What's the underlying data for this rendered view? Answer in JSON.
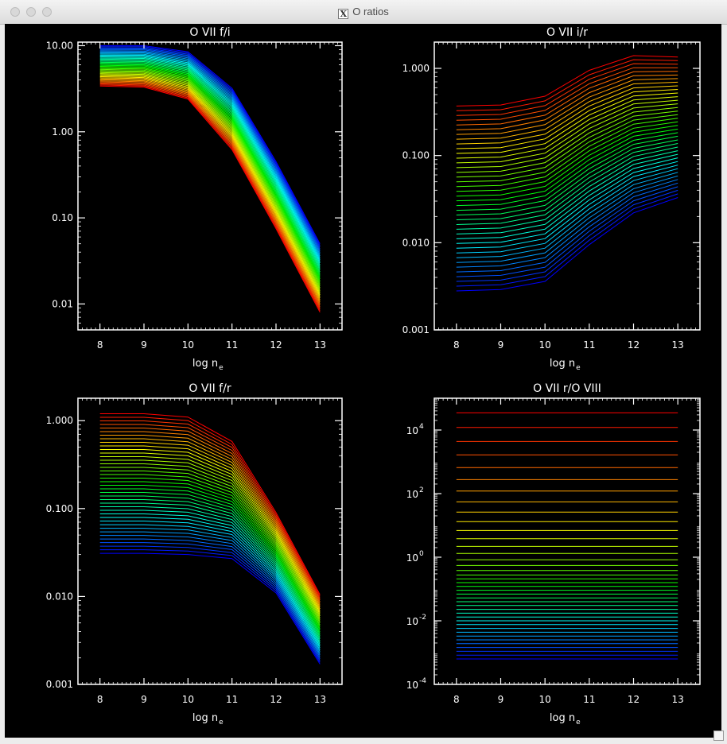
{
  "window": {
    "title": "O ratios"
  },
  "chart_data": [
    {
      "type": "line",
      "title": "O VII f/i",
      "xlabel": "log n",
      "xlabel_sub": "e",
      "x": [
        8,
        9,
        10,
        11,
        12,
        13
      ],
      "xlim": [
        7.5,
        13.5
      ],
      "yscale": "log",
      "ylim": [
        0.005,
        11
      ],
      "yticks": [
        0.01,
        0.1,
        1,
        10
      ],
      "ytick_labels": [
        "0.01",
        "0.10",
        "1.00",
        "10.00"
      ],
      "colormap": "rainbow",
      "series_count": 40,
      "series_first": [
        3.4,
        3.3,
        2.4,
        0.62,
        0.075,
        0.008
      ],
      "series_last": [
        10.0,
        10.0,
        8.5,
        3.2,
        0.45,
        0.05
      ]
    },
    {
      "type": "line",
      "title": "O VII i/r",
      "xlabel": "log n",
      "xlabel_sub": "e",
      "x": [
        8,
        9,
        10,
        11,
        12,
        13
      ],
      "xlim": [
        7.5,
        13.5
      ],
      "yscale": "log",
      "ylim": [
        0.001,
        2.0
      ],
      "yticks": [
        0.001,
        0.01,
        0.1,
        1
      ],
      "ytick_labels": [
        "0.001",
        "0.010",
        "0.100",
        "1.000"
      ],
      "colormap": "rainbow",
      "series_count": 40,
      "series_first": [
        0.0028,
        0.0029,
        0.0036,
        0.0095,
        0.022,
        0.033
      ],
      "series_last": [
        0.37,
        0.38,
        0.48,
        0.95,
        1.4,
        1.35
      ]
    },
    {
      "type": "line",
      "title": "O VII f/r",
      "xlabel": "log n",
      "xlabel_sub": "e",
      "x": [
        8,
        9,
        10,
        11,
        12,
        13
      ],
      "xlim": [
        7.5,
        13.5
      ],
      "yscale": "log",
      "ylim": [
        0.001,
        1.8
      ],
      "yticks": [
        0.001,
        0.01,
        0.1,
        1
      ],
      "ytick_labels": [
        "0.001",
        "0.010",
        "0.100",
        "1.000"
      ],
      "colormap": "rainbow",
      "series_count": 40,
      "series_first": [
        0.031,
        0.031,
        0.03,
        0.027,
        0.011,
        0.0017
      ],
      "series_last": [
        1.2,
        1.2,
        1.1,
        0.58,
        0.09,
        0.0105
      ]
    },
    {
      "type": "line",
      "title": "O VII r/O VIII",
      "xlabel": "log n",
      "xlabel_sub": "e",
      "x": [
        8,
        9,
        10,
        11,
        12,
        13
      ],
      "xlim": [
        7.5,
        13.5
      ],
      "yscale": "log",
      "ylim": [
        0.0001,
        100000
      ],
      "yticks": [
        0.0001,
        0.01,
        1,
        100,
        10000
      ],
      "ytick_labels": [
        {
          "base": "10",
          "exp": "-4"
        },
        {
          "base": "10",
          "exp": "-2"
        },
        {
          "base": "10",
          "exp": "0"
        },
        {
          "base": "10",
          "exp": "2"
        },
        {
          "base": "10",
          "exp": "4"
        }
      ],
      "colormap": "rainbow",
      "series_count": 40,
      "series_values_log10": [
        -3.2,
        -3.08,
        -2.96,
        -2.84,
        -2.72,
        -2.6,
        -2.48,
        -2.36,
        -2.24,
        -2.12,
        -2.0,
        -1.88,
        -1.76,
        -1.64,
        -1.52,
        -1.4,
        -1.28,
        -1.16,
        -1.04,
        -0.92,
        -0.8,
        -0.68,
        -0.56,
        -0.42,
        -0.26,
        -0.08,
        0.12,
        0.34,
        0.58,
        0.84,
        1.12,
        1.42,
        1.74,
        2.08,
        2.44,
        2.82,
        3.22,
        3.64,
        4.08,
        4.54
      ]
    }
  ]
}
